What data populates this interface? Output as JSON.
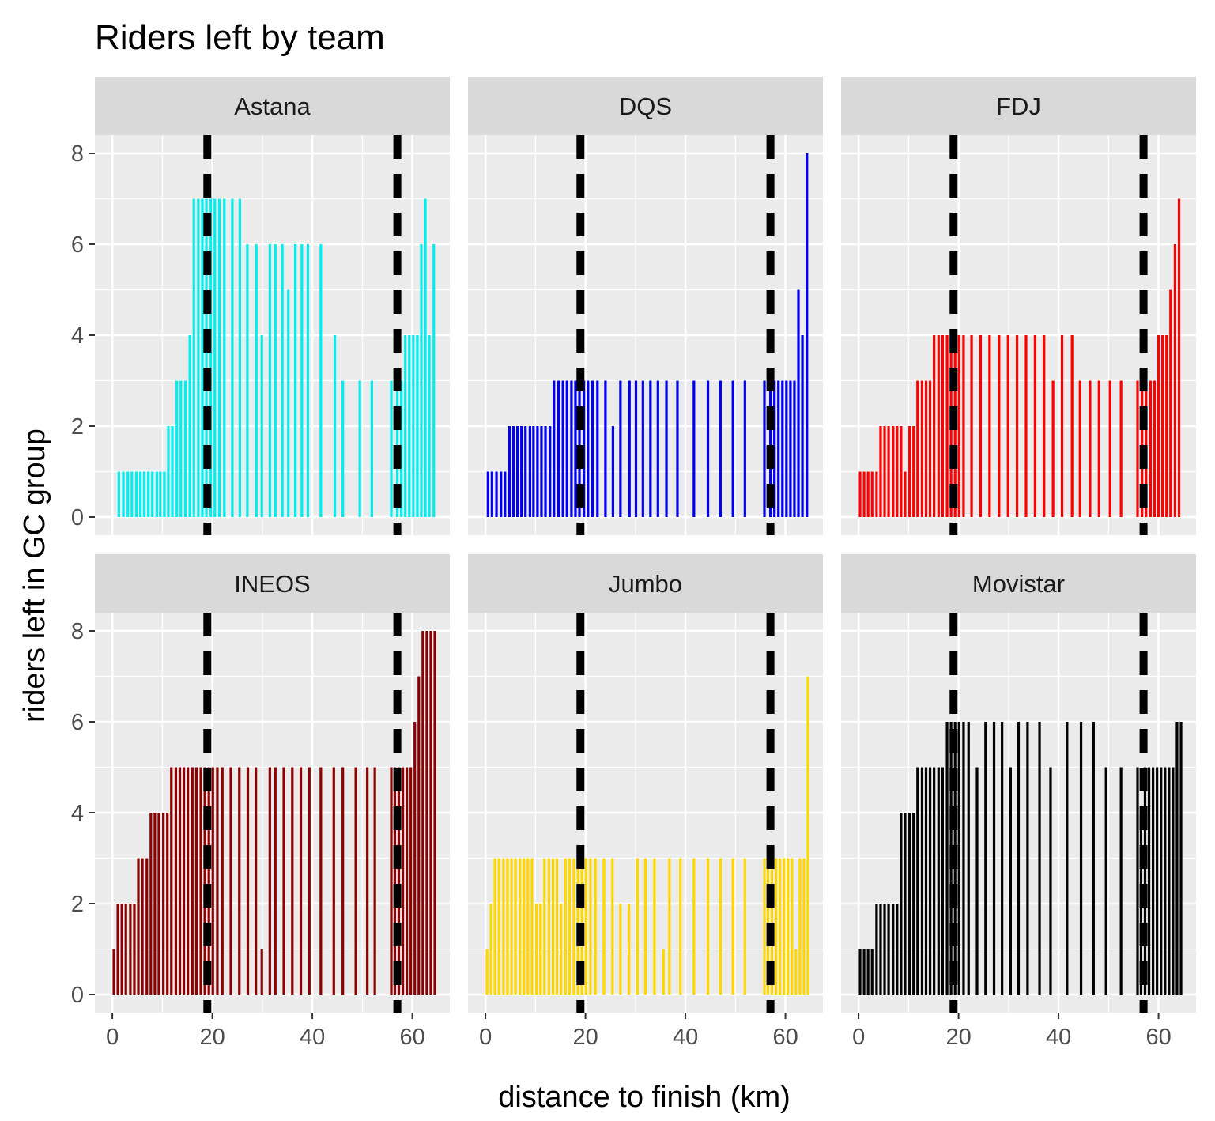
{
  "chart_data": {
    "type": "bar",
    "title": "Riders left by team",
    "xlabel": "distance to finish (km)",
    "ylabel": "riders left in GC group",
    "xlim": [
      -3.5,
      67.5
    ],
    "ylim": [
      -0.4,
      8.4
    ],
    "x_ticks": [
      0,
      20,
      40,
      60
    ],
    "y_ticks": [
      0,
      2,
      4,
      6,
      8
    ],
    "grid": true,
    "legend": "none",
    "reference_lines": {
      "style": "dashed",
      "color": "#000000",
      "x": [
        19,
        57
      ]
    },
    "facets": [
      {
        "name": "Astana",
        "color": "#00EEEE",
        "x": [
          1.3,
          2.2,
          3.1,
          3.9,
          4.8,
          5.6,
          6.4,
          7.2,
          8.0,
          8.9,
          9.6,
          10.4,
          11.2,
          12.0,
          12.9,
          13.7,
          14.6,
          15.5,
          16.3,
          17.2,
          18.0,
          18.8,
          19.7,
          20.5,
          21.4,
          22.4,
          24.0,
          25.5,
          27.0,
          28.8,
          29.9,
          31.5,
          32.6,
          34.0,
          35.2,
          36.6,
          37.9,
          39.1,
          41.7,
          44.5,
          46.1,
          49.5,
          51.9,
          55.8,
          57.0,
          57.8,
          58.6,
          59.4,
          60.2,
          61.0,
          61.8,
          62.6,
          63.4,
          64.3
        ],
        "values": [
          1,
          1,
          1,
          1,
          1,
          1,
          1,
          1,
          1,
          1,
          1,
          1,
          2,
          2,
          3,
          3,
          3,
          4,
          7,
          7,
          7,
          7,
          7,
          7,
          7,
          7,
          7,
          7,
          6,
          6,
          4,
          6,
          6,
          6,
          5,
          6,
          6,
          6,
          6,
          4,
          3,
          3,
          3,
          3,
          3,
          3,
          4,
          4,
          4,
          4,
          6,
          7,
          4,
          6
        ]
      },
      {
        "name": "DQS",
        "color": "#0000EE",
        "x": [
          0.5,
          1.3,
          2.2,
          3.1,
          3.9,
          4.8,
          5.6,
          6.4,
          7.2,
          8.0,
          8.9,
          9.6,
          10.4,
          11.2,
          12.0,
          12.9,
          13.7,
          14.6,
          15.5,
          16.3,
          17.2,
          18.0,
          18.8,
          19.7,
          20.5,
          21.4,
          22.4,
          24.0,
          25.5,
          27.0,
          28.8,
          30.1,
          31.5,
          33.0,
          34.5,
          36.2,
          38.4,
          41.7,
          44.5,
          47.0,
          49.5,
          51.9,
          55.8,
          57.0,
          57.8,
          58.6,
          59.4,
          60.2,
          61.0,
          61.8,
          62.6,
          63.4,
          64.3
        ],
        "values": [
          1,
          1,
          1,
          1,
          1,
          2,
          2,
          2,
          2,
          2,
          2,
          2,
          2,
          2,
          2,
          2,
          3,
          3,
          3,
          3,
          3,
          3,
          3,
          3,
          3,
          3,
          3,
          3,
          2,
          3,
          3,
          3,
          3,
          3,
          3,
          3,
          3,
          3,
          3,
          3,
          3,
          3,
          3,
          3,
          3,
          3,
          3,
          3,
          3,
          3,
          5,
          4,
          8
        ]
      },
      {
        "name": "FDJ",
        "color": "#FF0000",
        "x": [
          0.3,
          1.1,
          1.9,
          2.7,
          3.6,
          4.4,
          5.2,
          6.0,
          6.9,
          7.7,
          8.5,
          9.3,
          10.2,
          11.0,
          11.8,
          12.7,
          13.5,
          14.3,
          15.1,
          16.0,
          16.8,
          17.7,
          18.5,
          19.3,
          20.1,
          21.0,
          22.6,
          24.4,
          26.2,
          28.1,
          29.9,
          31.7,
          33.5,
          35.3,
          37.1,
          38.9,
          40.7,
          42.7,
          44.3,
          46.3,
          48.1,
          50.3,
          52.5,
          55.8,
          56.7,
          57.5,
          58.4,
          59.2,
          60.0,
          60.8,
          61.6,
          62.4,
          63.3,
          64.1
        ],
        "values": [
          1,
          1,
          1,
          1,
          1,
          2,
          2,
          2,
          2,
          2,
          2,
          1,
          2,
          2,
          3,
          3,
          3,
          3,
          4,
          4,
          4,
          4,
          4,
          4,
          4,
          4,
          4,
          4,
          4,
          4,
          4,
          4,
          4,
          4,
          4,
          3,
          4,
          4,
          3,
          3,
          3,
          3,
          3,
          3,
          3,
          3,
          3,
          3,
          4,
          4,
          4,
          5,
          6,
          7
        ]
      },
      {
        "name": "INEOS",
        "color": "#8B0000",
        "x": [
          0.3,
          1.1,
          1.9,
          2.7,
          3.6,
          4.4,
          5.2,
          6.0,
          6.9,
          7.7,
          8.5,
          9.3,
          10.2,
          11.0,
          11.8,
          12.7,
          13.5,
          14.3,
          15.1,
          16.0,
          16.8,
          17.7,
          18.5,
          19.3,
          20.1,
          21.0,
          22.0,
          23.7,
          25.4,
          27.1,
          28.7,
          29.9,
          31.5,
          32.6,
          34.3,
          36.0,
          37.7,
          39.4,
          41.7,
          44.3,
          46.1,
          48.7,
          51.0,
          52.5,
          55.8,
          56.5,
          57.3,
          58.1,
          58.9,
          59.7,
          60.5,
          61.3,
          62.1,
          62.9,
          63.7,
          64.5
        ],
        "values": [
          1,
          2,
          2,
          2,
          2,
          2,
          3,
          3,
          3,
          4,
          4,
          4,
          4,
          4,
          5,
          5,
          5,
          5,
          5,
          5,
          5,
          5,
          5,
          5,
          5,
          5,
          5,
          5,
          5,
          5,
          5,
          1,
          5,
          5,
          5,
          5,
          5,
          5,
          5,
          5,
          5,
          5,
          5,
          5,
          5,
          5,
          5,
          5,
          5,
          5,
          6,
          7,
          8,
          8,
          8,
          8
        ]
      },
      {
        "name": "Jumbo",
        "color": "#FFD700",
        "x": [
          0.3,
          1.1,
          1.9,
          2.7,
          3.6,
          4.4,
          5.2,
          6.0,
          6.9,
          7.7,
          8.5,
          9.3,
          10.2,
          11.0,
          11.8,
          12.7,
          13.5,
          14.3,
          15.1,
          16.0,
          16.8,
          17.7,
          18.5,
          19.3,
          20.1,
          21.0,
          22.0,
          23.7,
          25.4,
          27.0,
          28.7,
          30.4,
          32.0,
          33.8,
          35.6,
          36.8,
          39.0,
          41.7,
          44.5,
          47.0,
          49.5,
          51.9,
          55.8,
          56.5,
          57.3,
          58.1,
          58.9,
          59.7,
          60.5,
          61.3,
          62.1,
          62.9,
          63.7,
          64.5
        ],
        "values": [
          1,
          2,
          3,
          3,
          3,
          3,
          3,
          3,
          3,
          3,
          3,
          3,
          2,
          2,
          3,
          3,
          3,
          3,
          2,
          3,
          3,
          3,
          3,
          3,
          3,
          3,
          3,
          3,
          3,
          2,
          2,
          3,
          3,
          3,
          1,
          3,
          3,
          3,
          3,
          3,
          3,
          3,
          3,
          3,
          3,
          3,
          3,
          3,
          3,
          3,
          1,
          3,
          3,
          7
        ]
      },
      {
        "name": "Movistar",
        "color": "#000000",
        "x": [
          0.3,
          1.1,
          1.9,
          2.7,
          3.6,
          4.4,
          5.2,
          6.0,
          6.9,
          7.7,
          8.5,
          9.3,
          10.2,
          11.0,
          11.8,
          12.7,
          13.5,
          14.3,
          15.1,
          16.0,
          16.8,
          17.7,
          18.5,
          19.3,
          20.1,
          21.0,
          22.0,
          23.7,
          25.4,
          27.1,
          28.7,
          30.4,
          32.0,
          33.8,
          36.2,
          38.4,
          41.7,
          44.5,
          47.0,
          49.5,
          52.5,
          55.8,
          56.5,
          57.3,
          58.1,
          58.9,
          59.7,
          60.5,
          61.3,
          62.1,
          62.9,
          63.7,
          64.5
        ],
        "values": [
          1,
          1,
          1,
          1,
          2,
          2,
          2,
          2,
          2,
          2,
          4,
          4,
          4,
          4,
          5,
          5,
          5,
          5,
          5,
          5,
          5,
          6,
          6,
          6,
          6,
          6,
          6,
          5,
          6,
          6,
          6,
          5,
          6,
          6,
          6,
          5,
          6,
          6,
          6,
          5,
          5,
          5,
          4,
          5,
          5,
          5,
          5,
          5,
          5,
          5,
          5,
          6,
          6
        ]
      }
    ]
  }
}
